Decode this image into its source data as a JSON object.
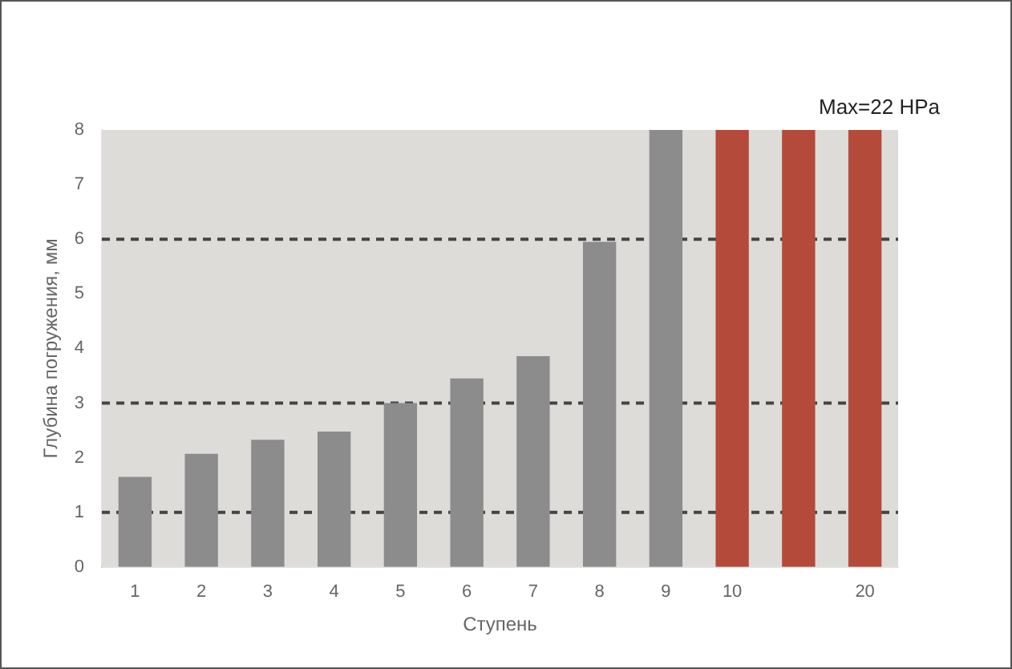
{
  "chart_data": {
    "type": "bar",
    "xlabel": "Ступень",
    "ylabel": "Глубина погружения, мм",
    "categories": [
      "1",
      "2",
      "3",
      "4",
      "5",
      "6",
      "7",
      "8",
      "9",
      "10",
      null,
      "20"
    ],
    "values": [
      1.65,
      2.07,
      2.33,
      2.48,
      3.0,
      3.45,
      3.86,
      5.95,
      8,
      8,
      8,
      8
    ],
    "colors": [
      "#8c8c8c",
      "#8c8c8c",
      "#8c8c8c",
      "#8c8c8c",
      "#8c8c8c",
      "#8c8c8c",
      "#8c8c8c",
      "#8c8c8c",
      "#8c8c8c",
      "#b44a3a",
      "#b44a3a",
      "#b44a3a"
    ],
    "ylim": [
      0,
      8
    ],
    "yticks": [
      0,
      1,
      2,
      3,
      4,
      5,
      6,
      7,
      8
    ],
    "ref_lines": [
      {
        "axis": "y",
        "value": 1,
        "color": "#444444",
        "line_style": "dashed"
      },
      {
        "axis": "y",
        "value": 3,
        "color": "#444444",
        "line_style": "dashed"
      },
      {
        "axis": "y",
        "value": 6,
        "color": "#444444",
        "line_style": "dashed"
      }
    ],
    "annotations": [
      "Max=22 HPa"
    ],
    "grid": false,
    "legend": false
  }
}
